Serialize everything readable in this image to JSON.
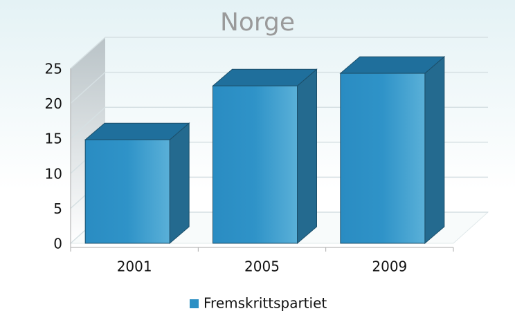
{
  "chart_data": {
    "type": "bar",
    "title": "Norge",
    "categories": [
      "2001",
      "2005",
      "2009"
    ],
    "series": [
      {
        "name": "Fremskrittspartiet",
        "color": "#2b8fc4",
        "values": [
          14.8,
          22.5,
          24.3
        ]
      }
    ],
    "ylim": [
      0,
      25
    ],
    "yticks": [
      0,
      5,
      10,
      15,
      20,
      25
    ],
    "grid": true,
    "legend": "bottom"
  }
}
